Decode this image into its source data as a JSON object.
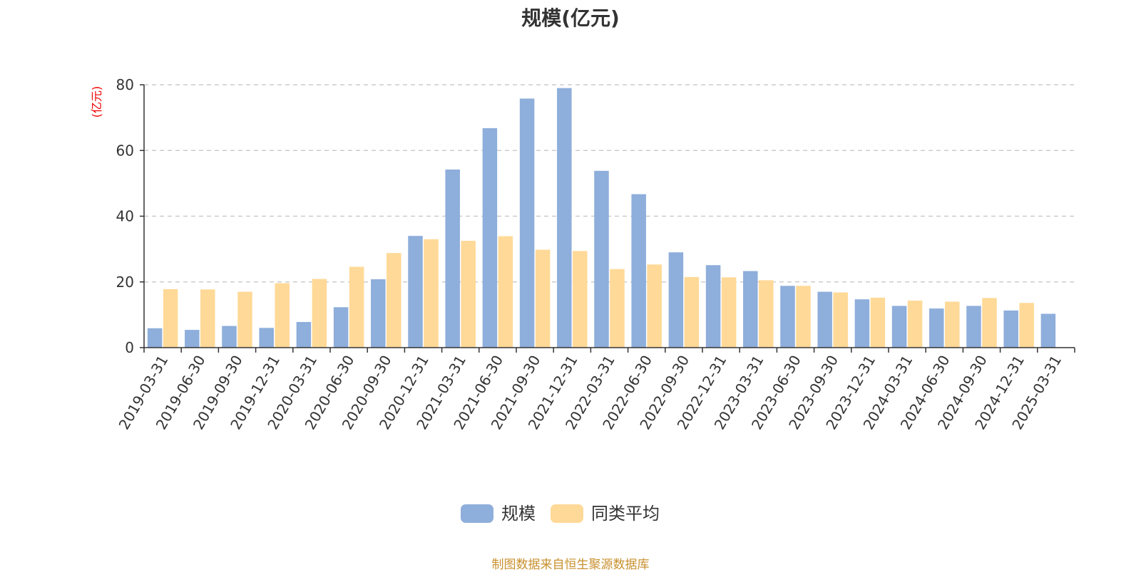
{
  "chart_data": {
    "type": "bar",
    "title": "规模(亿元)",
    "ylabel": "(亿元)",
    "xlabel": "",
    "ylim": [
      0,
      80
    ],
    "yticks": [
      0,
      20,
      40,
      60,
      80
    ],
    "grid": "horizontal-dashed",
    "legend_position": "bottom-center",
    "categories": [
      "2019-03-31",
      "2019-06-30",
      "2019-09-30",
      "2019-12-31",
      "2020-03-31",
      "2020-06-30",
      "2020-09-30",
      "2020-12-31",
      "2021-03-31",
      "2021-06-30",
      "2021-09-30",
      "2021-12-31",
      "2022-03-31",
      "2022-06-30",
      "2022-09-30",
      "2022-12-31",
      "2023-03-31",
      "2023-06-30",
      "2023-09-30",
      "2023-12-31",
      "2024-03-31",
      "2024-06-30",
      "2024-09-30",
      "2024-12-31",
      "2025-03-31"
    ],
    "series": [
      {
        "name": "规模",
        "color": "#8eaedb",
        "values": [
          5.9,
          5.4,
          6.6,
          6.0,
          7.8,
          12.3,
          20.8,
          34.0,
          54.2,
          66.8,
          75.8,
          79.0,
          53.8,
          46.7,
          29.0,
          25.1,
          23.3,
          18.8,
          17.0,
          14.7,
          12.7,
          11.9,
          12.7,
          11.3,
          10.3
        ]
      },
      {
        "name": "同类平均",
        "color": "#ffd997",
        "values": [
          17.8,
          17.7,
          17.0,
          19.6,
          20.9,
          24.6,
          28.8,
          33.0,
          32.5,
          33.9,
          29.8,
          29.4,
          23.9,
          25.3,
          21.5,
          21.4,
          20.5,
          18.8,
          16.8,
          15.2,
          14.3,
          14.0,
          15.1,
          13.6,
          null
        ]
      }
    ]
  },
  "source_note": "制图数据来自恒生聚源数据库"
}
